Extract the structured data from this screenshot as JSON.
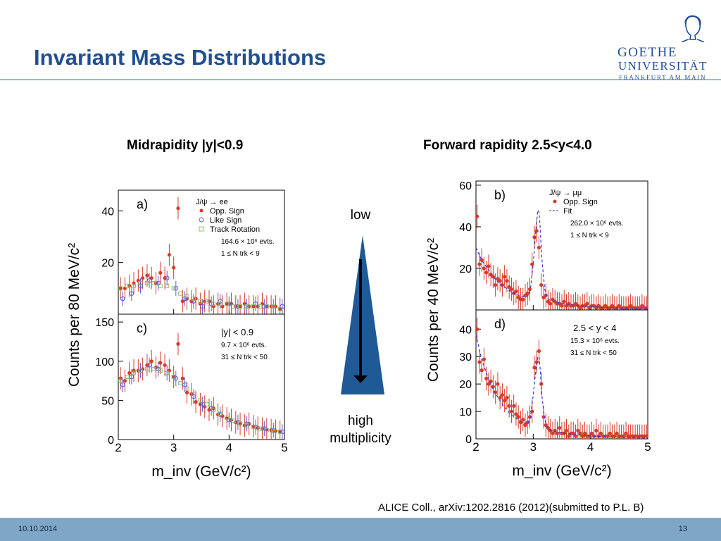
{
  "slide": {
    "title": "Invariant Mass Distributions",
    "heading_left": "Midrapidity |y|<0.9",
    "heading_right": "Forward rapidity 2.5<y<4.0",
    "arrow_top_label": "low",
    "arrow_bottom_label_1": "high",
    "arrow_bottom_label_2": "multiplicity",
    "citation": "ALICE Coll., arXiv:1202.2816 (2012)(submitted to P.L. B)",
    "footer_date": "10.10.2014",
    "footer_page": "13",
    "logo_line1": "GOETHE",
    "logo_line2": "UNIVERSITÄT",
    "logo_line3": "FRANKFURT AM MAIN"
  },
  "colors": {
    "title": "#1f4e93",
    "opp_sign": "#d63a2a",
    "like_sign": "#5a5ae6",
    "track_rotation": "#8fbf6a",
    "fit": "#3a3ad6",
    "arrow_fill": "#1f5a96",
    "footer": "#7fa6c6"
  },
  "chart_data": [
    {
      "id": "left",
      "type": "scatter",
      "ylabel": "Counts per 80 MeV/c²",
      "xlabel": "m_inv (GeV/c²)",
      "xlim": [
        2,
        5
      ],
      "xticks": [
        "2",
        "3",
        "4",
        "5"
      ],
      "panels": [
        {
          "letter": "a)",
          "ylim": [
            0,
            48
          ],
          "yticks": [
            20,
            40
          ],
          "legend": [
            "J/ψ → ee",
            "Opp. Sign",
            "Like Sign",
            "Track Rotation"
          ],
          "notes": [
            "164.6 × 10⁶ evts.",
            "1 ≤ N_trk < 9"
          ],
          "series": [
            {
              "name": "Opp. Sign",
              "x": [
                2.04,
                2.12,
                2.2,
                2.28,
                2.36,
                2.44,
                2.52,
                2.6,
                2.68,
                2.76,
                2.84,
                2.92,
                3.0,
                3.08,
                3.16,
                3.24,
                3.32,
                3.4,
                3.48,
                3.56,
                3.64,
                3.72,
                3.8,
                3.88,
                3.96,
                4.04,
                4.12,
                4.2,
                4.28,
                4.36,
                4.44,
                4.52,
                4.6,
                4.68,
                4.76,
                4.84,
                4.92
              ],
              "y": [
                10,
                10,
                11,
                12,
                13,
                14,
                15,
                14,
                12,
                16,
                14,
                23,
                18,
                41,
                5,
                6,
                5,
                6,
                4,
                5,
                5,
                3,
                4,
                3,
                4,
                4,
                3,
                3,
                4,
                3,
                3,
                3,
                4,
                3,
                3,
                3,
                2
              ]
            },
            {
              "name": "Like Sign",
              "x": [
                2.08,
                2.24,
                2.4,
                2.56,
                2.72,
                2.88,
                3.04,
                3.2,
                3.36,
                3.52,
                3.68,
                3.84,
                4.0,
                4.16,
                4.32,
                4.48,
                4.64,
                4.8,
                4.96
              ],
              "y": [
                6,
                8,
                11,
                13,
                12,
                14,
                10,
                6,
                5,
                3,
                4,
                5,
                4,
                3,
                3,
                4,
                3,
                3,
                3
              ]
            },
            {
              "name": "Track Rotation",
              "x": [
                2.04,
                2.16,
                2.28,
                2.4,
                2.52,
                2.64,
                2.76,
                2.88,
                3.0,
                3.12,
                3.24,
                3.36,
                3.48,
                3.6,
                3.72,
                3.84,
                3.96,
                4.08,
                4.2,
                4.32,
                4.44,
                4.56,
                4.68,
                4.8,
                4.92
              ],
              "y": [
                10,
                11,
                11,
                12,
                12,
                12,
                11,
                11,
                10,
                8,
                7,
                6,
                5,
                5,
                4,
                4,
                4,
                3,
                3,
                3,
                3,
                3,
                3,
                3,
                2
              ]
            }
          ]
        },
        {
          "letter": "c)",
          "ylim": [
            0,
            160
          ],
          "yticks": [
            0,
            50,
            100,
            150
          ],
          "legend": [],
          "notes": [
            "|y| < 0.9",
            "9.7 × 10⁶ evts.",
            "31 ≤ N_trk < 50"
          ],
          "series": [
            {
              "name": "Opp. Sign",
              "x": [
                2.04,
                2.12,
                2.2,
                2.28,
                2.36,
                2.44,
                2.52,
                2.6,
                2.68,
                2.76,
                2.84,
                2.92,
                3.0,
                3.08,
                3.16,
                3.24,
                3.32,
                3.4,
                3.48,
                3.56,
                3.64,
                3.72,
                3.8,
                3.88,
                3.96,
                4.04,
                4.12,
                4.2,
                4.28,
                4.36,
                4.44,
                4.52,
                4.6,
                4.68,
                4.76,
                4.84,
                4.92
              ],
              "y": [
                78,
                75,
                85,
                88,
                88,
                90,
                95,
                100,
                92,
                98,
                95,
                88,
                80,
                122,
                78,
                60,
                58,
                48,
                45,
                42,
                38,
                40,
                32,
                30,
                27,
                25,
                22,
                20,
                18,
                20,
                17,
                15,
                14,
                13,
                12,
                11,
                10
              ]
            },
            {
              "name": "Like Sign",
              "x": [
                2.08,
                2.24,
                2.4,
                2.56,
                2.72,
                2.88,
                3.04,
                3.2,
                3.36,
                3.52,
                3.68,
                3.84,
                4.0,
                4.16,
                4.32,
                4.48,
                4.64,
                4.8,
                4.96
              ],
              "y": [
                70,
                80,
                88,
                95,
                90,
                85,
                78,
                70,
                55,
                45,
                40,
                32,
                25,
                22,
                20,
                16,
                14,
                12,
                10
              ]
            },
            {
              "name": "Track Rotation",
              "x": [
                2.04,
                2.16,
                2.28,
                2.4,
                2.52,
                2.64,
                2.76,
                2.88,
                3.0,
                3.12,
                3.24,
                3.36,
                3.48,
                3.6,
                3.72,
                3.84,
                3.96,
                4.08,
                4.2,
                4.32,
                4.44,
                4.56,
                4.68,
                4.8,
                4.92
              ],
              "y": [
                75,
                80,
                85,
                88,
                90,
                90,
                88,
                85,
                80,
                72,
                65,
                58,
                50,
                45,
                38,
                33,
                28,
                24,
                21,
                18,
                16,
                14,
                12,
                11,
                10
              ]
            }
          ]
        }
      ]
    },
    {
      "id": "right",
      "type": "scatter",
      "ylabel": "Counts per 40 MeV/c²",
      "xlabel": "m_inv (GeV/c²)",
      "xlim": [
        2,
        5
      ],
      "xticks": [
        "2",
        "3",
        "4",
        "5"
      ],
      "panels": [
        {
          "letter": "b)",
          "ylim": [
            0,
            62
          ],
          "yticks": [
            20,
            40,
            60
          ],
          "legend": [
            "J/ψ → μμ",
            "Opp. Sign",
            "Fit"
          ],
          "notes": [
            "262.0 × 10⁶ evts.",
            "1 ≤ N_trk < 9"
          ],
          "series": [
            {
              "name": "Opp. Sign",
              "x": [
                2.02,
                2.06,
                2.1,
                2.14,
                2.18,
                2.22,
                2.26,
                2.3,
                2.34,
                2.38,
                2.42,
                2.46,
                2.5,
                2.54,
                2.58,
                2.62,
                2.66,
                2.7,
                2.74,
                2.78,
                2.82,
                2.86,
                2.9,
                2.94,
                2.98,
                3.02,
                3.06,
                3.1,
                3.14,
                3.18,
                3.22,
                3.26,
                3.3,
                3.34,
                3.38,
                3.42,
                3.46,
                3.5,
                3.54,
                3.58,
                3.62,
                3.66,
                3.7,
                3.74,
                3.78,
                3.82,
                3.86,
                3.9,
                3.94,
                3.98,
                4.02,
                4.06,
                4.1,
                4.14,
                4.18,
                4.22,
                4.26,
                4.3,
                4.34,
                4.38,
                4.42,
                4.46,
                4.5,
                4.54,
                4.58,
                4.62,
                4.66,
                4.7,
                4.74,
                4.78,
                4.82,
                4.86,
                4.9,
                4.94,
                4.98
              ],
              "y": [
                45,
                22,
                24,
                20,
                18,
                21,
                17,
                16,
                12,
                15,
                14,
                12,
                16,
                14,
                11,
                10,
                8,
                9,
                6,
                5,
                5,
                7,
                8,
                10,
                22,
                35,
                38,
                30,
                12,
                6,
                7,
                4,
                3,
                5,
                4,
                3,
                3,
                2,
                4,
                2,
                3,
                2,
                2,
                3,
                2,
                1,
                2,
                2,
                3,
                1,
                2,
                2,
                1,
                2,
                1,
                1,
                2,
                1,
                1,
                2,
                1,
                1,
                2,
                1,
                1,
                1,
                1,
                2,
                1,
                1,
                1,
                1,
                2,
                1,
                1
              ]
            },
            {
              "name": "Fit",
              "x": [
                2.0,
                2.1,
                2.2,
                2.3,
                2.4,
                2.5,
                2.6,
                2.7,
                2.8,
                2.9,
                2.95,
                3.0,
                3.05,
                3.08,
                3.1,
                3.12,
                3.15,
                3.2,
                3.25,
                3.3,
                3.4,
                3.5,
                3.7,
                3.9,
                4.2,
                4.5,
                5.0
              ],
              "y": [
                30,
                24,
                20,
                16,
                13,
                11,
                9,
                7.5,
                6.3,
                6.5,
                10,
                22,
                40,
                48,
                47,
                40,
                25,
                10,
                5.5,
                4.6,
                3.8,
                3.2,
                2.4,
                1.8,
                1.2,
                0.9,
                0.6
              ]
            }
          ]
        },
        {
          "letter": "d)",
          "ylim": [
            0,
            47
          ],
          "yticks": [
            0,
            10,
            20,
            30,
            40
          ],
          "legend": [],
          "notes": [
            "2.5 < y < 4",
            "15.3 × 10⁶ evts.",
            "31 ≤ N_trk < 50"
          ],
          "series": [
            {
              "name": "Opp. Sign",
              "x": [
                2.02,
                2.06,
                2.1,
                2.14,
                2.18,
                2.22,
                2.26,
                2.3,
                2.34,
                2.38,
                2.42,
                2.46,
                2.5,
                2.54,
                2.58,
                2.62,
                2.66,
                2.7,
                2.74,
                2.78,
                2.82,
                2.86,
                2.9,
                2.94,
                2.98,
                3.02,
                3.06,
                3.1,
                3.14,
                3.18,
                3.22,
                3.26,
                3.3,
                3.34,
                3.38,
                3.42,
                3.46,
                3.5,
                3.54,
                3.58,
                3.62,
                3.66,
                3.7,
                3.74,
                3.78,
                3.82,
                3.86,
                3.9,
                3.94,
                3.98,
                4.02,
                4.06,
                4.1,
                4.14,
                4.18,
                4.22,
                4.26,
                4.3,
                4.34,
                4.38,
                4.42,
                4.46,
                4.5,
                4.54,
                4.58,
                4.62,
                4.66,
                4.7,
                4.74,
                4.78,
                4.82,
                4.86,
                4.9,
                4.94,
                4.98
              ],
              "y": [
                40,
                28,
                25,
                29,
                22,
                20,
                21,
                19,
                17,
                20,
                15,
                16,
                14,
                15,
                12,
                10,
                12,
                9,
                8,
                6,
                7,
                5,
                6,
                8,
                10,
                26,
                28,
                32,
                20,
                8,
                5,
                4,
                3,
                2,
                3,
                2,
                4,
                2,
                2,
                3,
                1,
                2,
                2,
                1,
                3,
                2,
                1,
                2,
                1,
                1,
                2,
                1,
                3,
                1,
                2,
                1,
                1,
                1,
                2,
                1,
                1,
                2,
                1,
                1,
                1,
                2,
                1,
                1,
                1,
                1,
                1,
                1,
                1,
                1,
                1
              ]
            },
            {
              "name": "Fit",
              "x": [
                2.0,
                2.1,
                2.2,
                2.3,
                2.4,
                2.5,
                2.6,
                2.7,
                2.8,
                2.9,
                2.95,
                3.0,
                3.05,
                3.08,
                3.1,
                3.12,
                3.15,
                3.2,
                3.25,
                3.3,
                3.4,
                3.5,
                3.7,
                3.9,
                4.2,
                4.5,
                5.0
              ],
              "y": [
                38,
                29,
                23,
                18,
                14.5,
                11.5,
                9,
                7.5,
                6,
                5.5,
                8,
                16,
                26,
                30,
                30,
                26,
                16,
                7,
                4,
                3.2,
                2.6,
                2.2,
                1.6,
                1.2,
                0.8,
                0.5,
                0.3
              ]
            }
          ]
        }
      ]
    }
  ]
}
